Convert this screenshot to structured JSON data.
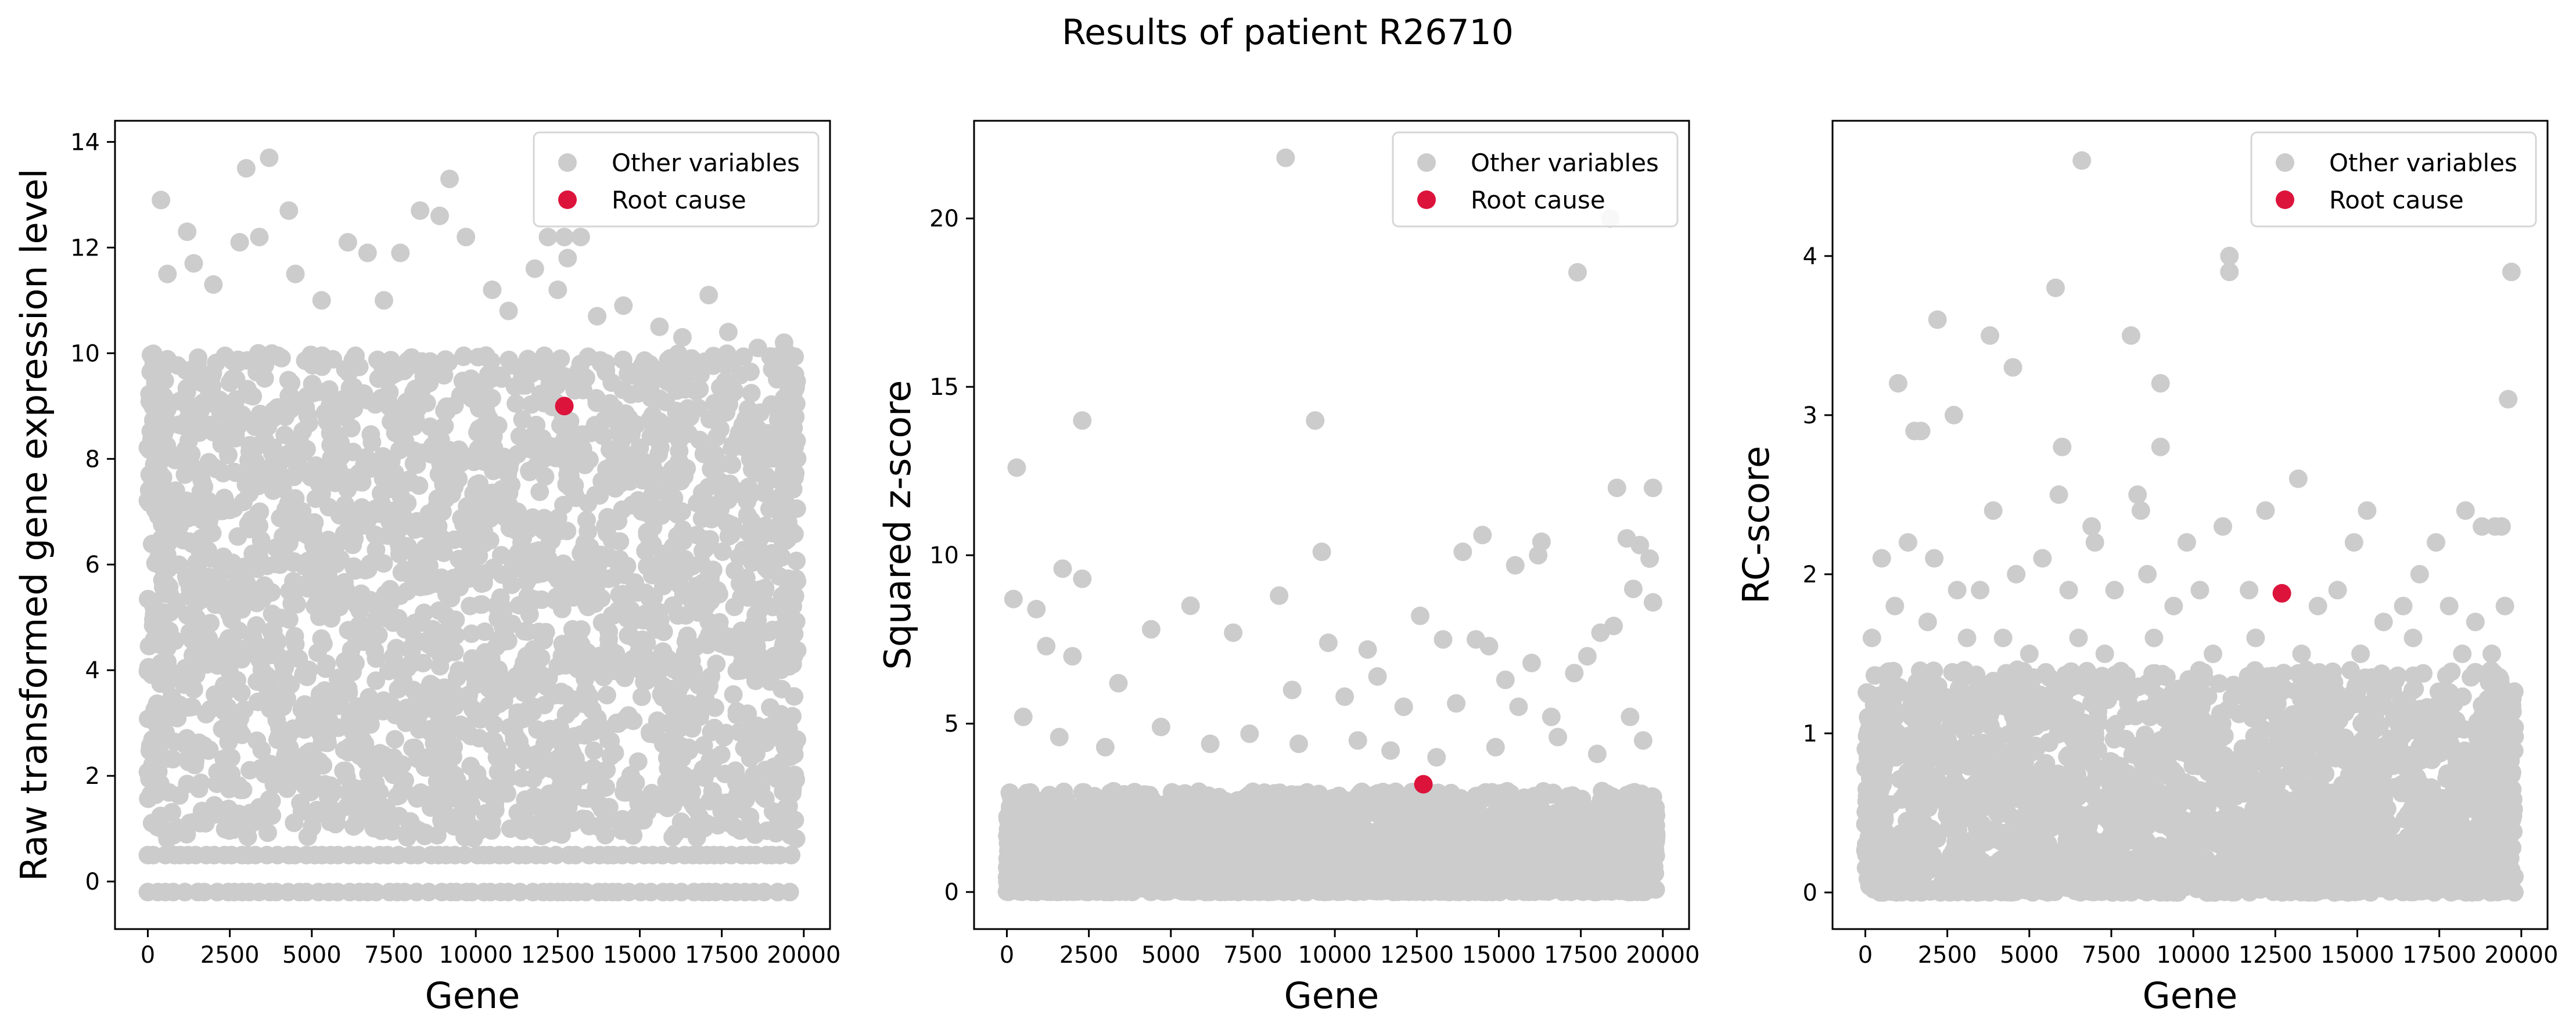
{
  "figure_title": "Results of patient R26710",
  "colors": {
    "other": "#cccccc",
    "root": "#dc143c",
    "axis": "#000000"
  },
  "legend_labels": [
    "Other variables",
    "Root cause"
  ],
  "chart_data": [
    {
      "type": "scatter",
      "title": "",
      "xlabel": "Gene",
      "ylabel": "Raw transformed gene expression level",
      "xlim": [
        -1000,
        20800
      ],
      "ylim": [
        -0.9,
        14.4
      ],
      "xticks": [
        0,
        2500,
        5000,
        7500,
        10000,
        12500,
        15000,
        17500,
        20000
      ],
      "yticks": [
        0,
        2,
        4,
        6,
        8,
        10,
        12,
        14
      ],
      "x_range": [
        0,
        19800
      ],
      "legend": "top-right",
      "series": [
        {
          "name": "Other variables",
          "bulk_band": {
            "y_min": 0.8,
            "y_max": 10.0
          },
          "floor_levels": [
            -0.2,
            0.5
          ],
          "points": [
            [
              400,
              12.9
            ],
            [
              1200,
              12.3
            ],
            [
              3000,
              13.5
            ],
            [
              3700,
              13.7
            ],
            [
              4300,
              12.7
            ],
            [
              2800,
              12.1
            ],
            [
              3400,
              12.2
            ],
            [
              6100,
              12.1
            ],
            [
              6700,
              11.9
            ],
            [
              7700,
              11.9
            ],
            [
              8300,
              12.7
            ],
            [
              8900,
              12.6
            ],
            [
              9200,
              13.3
            ],
            [
              9700,
              12.2
            ],
            [
              11800,
              11.6
            ],
            [
              12200,
              12.2
            ],
            [
              12700,
              12.2
            ],
            [
              13200,
              12.2
            ],
            [
              12800,
              11.8
            ],
            [
              12500,
              11.2
            ],
            [
              14500,
              10.9
            ],
            [
              15600,
              10.5
            ],
            [
              17100,
              11.1
            ],
            [
              17700,
              10.4
            ],
            [
              18600,
              10.1
            ],
            [
              19400,
              10.2
            ],
            [
              1400,
              11.7
            ],
            [
              600,
              11.5
            ],
            [
              2000,
              11.3
            ],
            [
              4500,
              11.5
            ],
            [
              5300,
              11.0
            ],
            [
              7200,
              11.0
            ],
            [
              10500,
              11.2
            ],
            [
              11000,
              10.8
            ],
            [
              13700,
              10.7
            ],
            [
              16300,
              10.3
            ]
          ]
        },
        {
          "name": "Root cause",
          "points": [
            [
              12700,
              9.0
            ]
          ]
        }
      ]
    },
    {
      "type": "scatter",
      "title": "",
      "xlabel": "Gene",
      "ylabel": "Squared z-score",
      "xlim": [
        -1000,
        20800
      ],
      "ylim": [
        -1.1,
        22.9
      ],
      "xticks": [
        0,
        2500,
        5000,
        7500,
        10000,
        12500,
        15000,
        17500,
        20000
      ],
      "yticks": [
        0,
        5,
        10,
        15,
        20
      ],
      "x_range": [
        0,
        19800
      ],
      "legend": "top-right",
      "series": [
        {
          "name": "Other variables",
          "bulk_band": {
            "y_min": 0.0,
            "y_max": 3.0
          },
          "points": [
            [
              300,
              12.6
            ],
            [
              2300,
              14.0
            ],
            [
              8500,
              21.8
            ],
            [
              9400,
              14.0
            ],
            [
              18400,
              20.0
            ],
            [
              17400,
              18.4
            ],
            [
              9600,
              10.1
            ],
            [
              18600,
              12.0
            ],
            [
              19700,
              12.0
            ],
            [
              1700,
              9.6
            ],
            [
              2300,
              9.3
            ],
            [
              8300,
              8.8
            ],
            [
              13900,
              10.1
            ],
            [
              14500,
              10.6
            ],
            [
              15500,
              9.7
            ],
            [
              16300,
              10.4
            ],
            [
              16200,
              10.0
            ],
            [
              18900,
              10.5
            ],
            [
              19300,
              10.3
            ],
            [
              19600,
              9.9
            ],
            [
              19700,
              8.6
            ],
            [
              19100,
              9.0
            ],
            [
              200,
              8.7
            ],
            [
              900,
              8.4
            ],
            [
              4400,
              7.8
            ],
            [
              5600,
              8.5
            ],
            [
              6900,
              7.7
            ],
            [
              9800,
              7.4
            ],
            [
              11000,
              7.2
            ],
            [
              11300,
              6.4
            ],
            [
              12600,
              8.2
            ],
            [
              13300,
              7.5
            ],
            [
              14300,
              7.5
            ],
            [
              14700,
              7.3
            ],
            [
              15200,
              6.3
            ],
            [
              16000,
              6.8
            ],
            [
              17300,
              6.5
            ],
            [
              17700,
              7.0
            ],
            [
              18100,
              7.7
            ],
            [
              18500,
              7.9
            ],
            [
              1200,
              7.3
            ],
            [
              2000,
              7.0
            ],
            [
              3400,
              6.2
            ],
            [
              8700,
              6.0
            ],
            [
              10300,
              5.8
            ],
            [
              12100,
              5.5
            ],
            [
              13700,
              5.6
            ],
            [
              15600,
              5.5
            ],
            [
              16600,
              5.2
            ],
            [
              19000,
              5.2
            ],
            [
              500,
              5.2
            ],
            [
              1600,
              4.6
            ],
            [
              3000,
              4.3
            ],
            [
              4700,
              4.9
            ],
            [
              6200,
              4.4
            ],
            [
              7400,
              4.7
            ],
            [
              8900,
              4.4
            ],
            [
              10700,
              4.5
            ],
            [
              11700,
              4.2
            ],
            [
              13100,
              4.0
            ],
            [
              14900,
              4.3
            ],
            [
              16800,
              4.6
            ],
            [
              18000,
              4.1
            ],
            [
              19400,
              4.5
            ]
          ]
        },
        {
          "name": "Root cause",
          "points": [
            [
              12700,
              3.2
            ]
          ]
        }
      ]
    },
    {
      "type": "scatter",
      "title": "",
      "xlabel": "Gene",
      "ylabel": "RC-score",
      "xlim": [
        -1000,
        20800
      ],
      "ylim": [
        -0.23,
        4.85
      ],
      "xticks": [
        0,
        2500,
        5000,
        7500,
        10000,
        12500,
        15000,
        17500,
        20000
      ],
      "yticks": [
        0,
        1,
        2,
        3,
        4
      ],
      "x_range": [
        0,
        19800
      ],
      "legend": "top-right",
      "series": [
        {
          "name": "Other variables",
          "bulk_band": {
            "y_min": 0.0,
            "y_max": 1.4
          },
          "points": [
            [
              6600,
              4.6
            ],
            [
              11100,
              4.0
            ],
            [
              11100,
              3.9
            ],
            [
              19700,
              3.9
            ],
            [
              5800,
              3.8
            ],
            [
              2200,
              3.6
            ],
            [
              3800,
              3.5
            ],
            [
              8100,
              3.5
            ],
            [
              4500,
              3.3
            ],
            [
              9000,
              3.2
            ],
            [
              1000,
              3.2
            ],
            [
              2700,
              3.0
            ],
            [
              19600,
              3.1
            ],
            [
              1500,
              2.9
            ],
            [
              1700,
              2.9
            ],
            [
              6000,
              2.8
            ],
            [
              9000,
              2.8
            ],
            [
              13200,
              2.6
            ],
            [
              5900,
              2.5
            ],
            [
              8300,
              2.5
            ],
            [
              8400,
              2.4
            ],
            [
              12200,
              2.4
            ],
            [
              15300,
              2.4
            ],
            [
              18300,
              2.4
            ],
            [
              18800,
              2.3
            ],
            [
              19200,
              2.3
            ],
            [
              19400,
              2.3
            ],
            [
              3900,
              2.4
            ],
            [
              6900,
              2.3
            ],
            [
              7000,
              2.2
            ],
            [
              9800,
              2.2
            ],
            [
              10900,
              2.3
            ],
            [
              14900,
              2.2
            ],
            [
              16900,
              2.0
            ],
            [
              17400,
              2.2
            ],
            [
              500,
              2.1
            ],
            [
              1300,
              2.2
            ],
            [
              2100,
              2.1
            ],
            [
              2800,
              1.9
            ],
            [
              3500,
              1.9
            ],
            [
              4600,
              2.0
            ],
            [
              5400,
              2.1
            ],
            [
              6200,
              1.9
            ],
            [
              7600,
              1.9
            ],
            [
              8600,
              2.0
            ],
            [
              9400,
              1.8
            ],
            [
              10200,
              1.9
            ],
            [
              11700,
              1.9
            ],
            [
              13800,
              1.8
            ],
            [
              14400,
              1.9
            ],
            [
              15800,
              1.7
            ],
            [
              16400,
              1.8
            ],
            [
              17800,
              1.8
            ],
            [
              18600,
              1.7
            ],
            [
              19500,
              1.8
            ],
            [
              200,
              1.6
            ],
            [
              900,
              1.8
            ],
            [
              1900,
              1.7
            ],
            [
              3100,
              1.6
            ],
            [
              4200,
              1.6
            ],
            [
              5000,
              1.5
            ],
            [
              6500,
              1.6
            ],
            [
              7300,
              1.5
            ],
            [
              8800,
              1.6
            ],
            [
              10600,
              1.5
            ],
            [
              11900,
              1.6
            ],
            [
              13300,
              1.5
            ],
            [
              15100,
              1.5
            ],
            [
              16700,
              1.6
            ],
            [
              18200,
              1.5
            ],
            [
              19100,
              1.5
            ]
          ]
        },
        {
          "name": "Root cause",
          "points": [
            [
              12700,
              1.88
            ]
          ]
        }
      ]
    }
  ]
}
